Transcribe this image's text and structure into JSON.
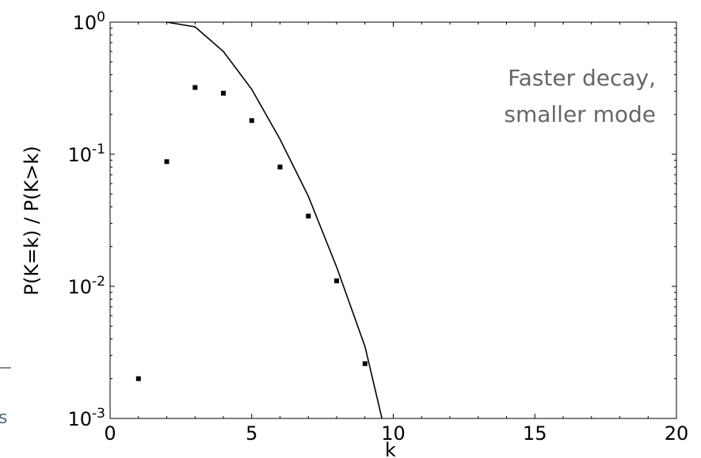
{
  "chart_data": {
    "type": "scatter",
    "title": "",
    "xlabel": "k",
    "ylabel": "P(K=k) / P(K>k)",
    "xlim": [
      0,
      20
    ],
    "ylim": [
      0.001,
      1
    ],
    "yscale": "log",
    "x_ticks": [
      "0",
      "5",
      "10",
      "15",
      "20"
    ],
    "y_ticks": [
      {
        "base": "10",
        "exp": "0"
      },
      {
        "base": "10",
        "exp": "-1"
      },
      {
        "base": "10",
        "exp": "-2"
      },
      {
        "base": "10",
        "exp": "-3"
      }
    ],
    "series": [
      {
        "kind": "points",
        "x": [
          1,
          2,
          3,
          4,
          5,
          6,
          7,
          8,
          9
        ],
        "y": [
          0.002,
          0.088,
          0.32,
          0.29,
          0.18,
          0.08,
          0.034,
          0.011,
          0.0026
        ]
      },
      {
        "kind": "line",
        "x": [
          2,
          3,
          4,
          5,
          6,
          7,
          8,
          9,
          9.6
        ],
        "y": [
          1.0,
          0.92,
          0.6,
          0.31,
          0.13,
          0.048,
          0.014,
          0.0035,
          0.001
        ]
      }
    ],
    "annotation": [
      "Faster decay,",
      "smaller mode"
    ],
    "colors": {
      "points": "#000000",
      "line": "#000000",
      "annotation": "#666666"
    }
  },
  "fragment": {
    "text": "s",
    "color": "#4a6d7c"
  }
}
